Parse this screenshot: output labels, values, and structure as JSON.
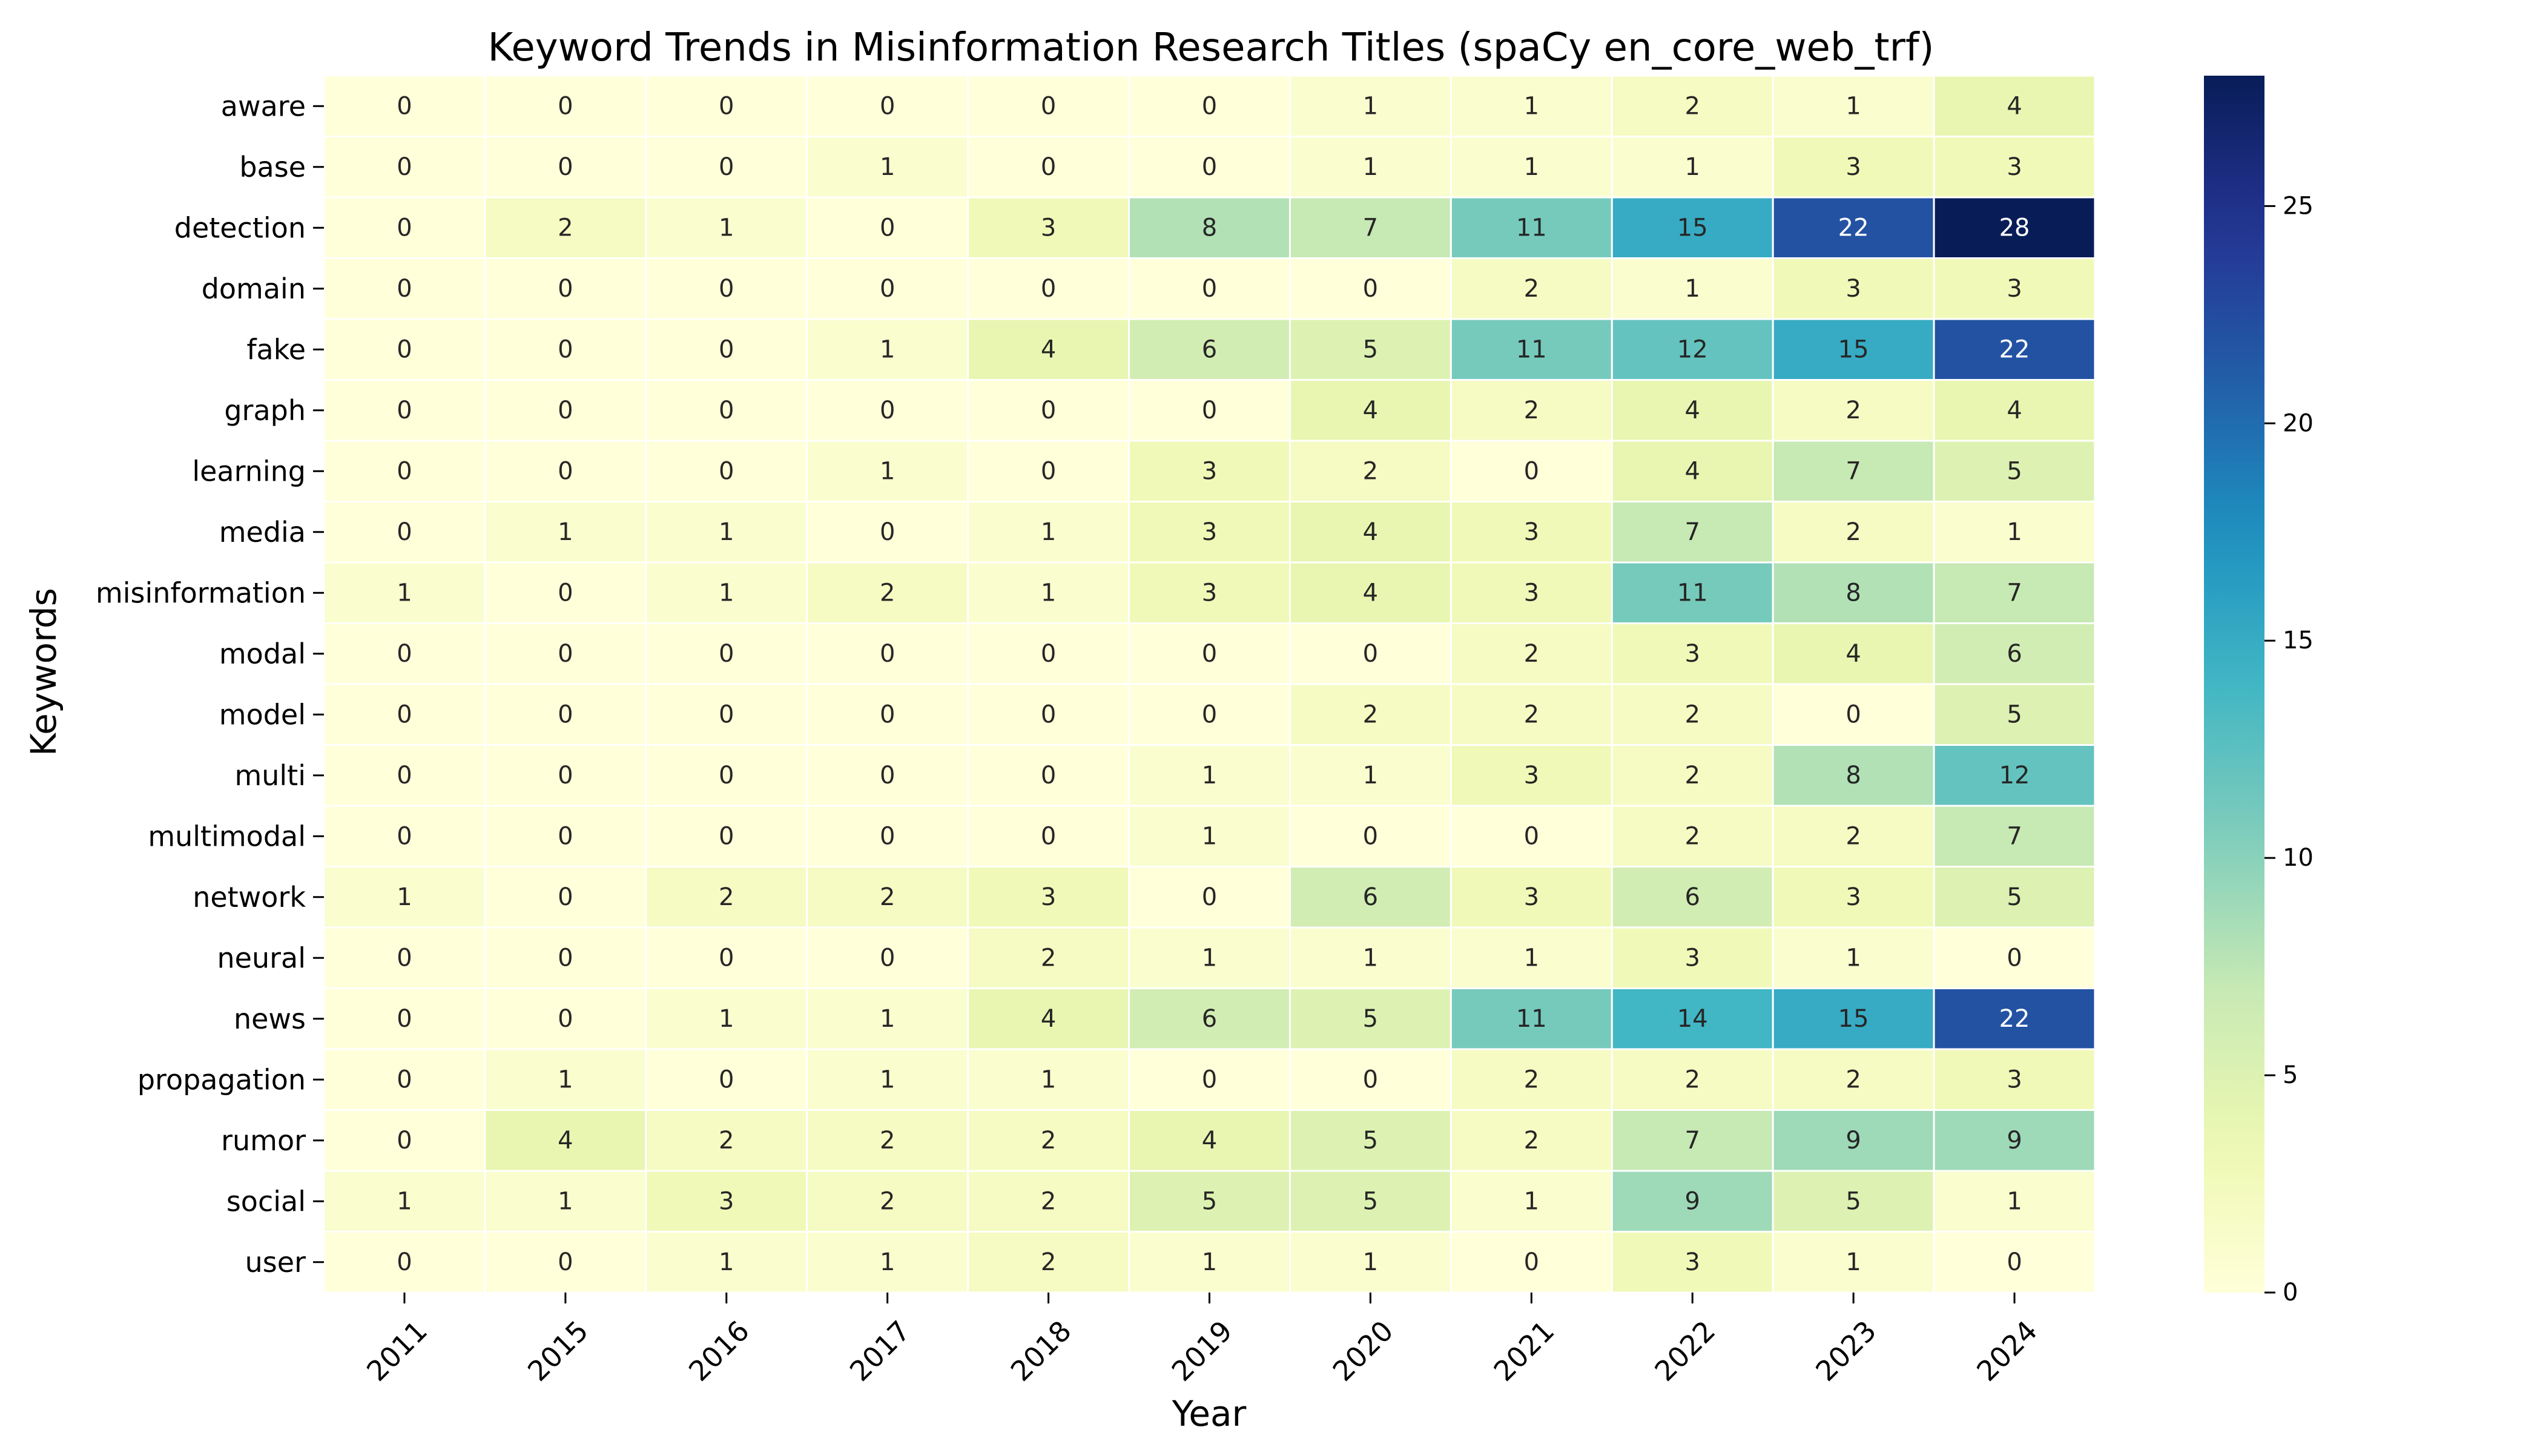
{
  "chart_data": {
    "type": "heatmap",
    "title": "Keyword Trends in Misinformation Research Titles (spaCy en_core_web_trf)",
    "xlabel": "Year",
    "ylabel": "Keywords",
    "x": [
      "2011",
      "2015",
      "2016",
      "2017",
      "2018",
      "2019",
      "2020",
      "2021",
      "2022",
      "2023",
      "2024"
    ],
    "y": [
      "aware",
      "base",
      "detection",
      "domain",
      "fake",
      "graph",
      "learning",
      "media",
      "misinformation",
      "modal",
      "model",
      "multi",
      "multimodal",
      "network",
      "neural",
      "news",
      "propagation",
      "rumor",
      "social",
      "user"
    ],
    "values": [
      [
        0,
        0,
        0,
        0,
        0,
        0,
        1,
        1,
        2,
        1,
        4
      ],
      [
        0,
        0,
        0,
        1,
        0,
        0,
        1,
        1,
        1,
        3,
        3
      ],
      [
        0,
        2,
        1,
        0,
        3,
        8,
        7,
        11,
        15,
        22,
        28
      ],
      [
        0,
        0,
        0,
        0,
        0,
        0,
        0,
        2,
        1,
        3,
        3
      ],
      [
        0,
        0,
        0,
        1,
        4,
        6,
        5,
        11,
        12,
        15,
        22
      ],
      [
        0,
        0,
        0,
        0,
        0,
        0,
        4,
        2,
        4,
        2,
        4
      ],
      [
        0,
        0,
        0,
        1,
        0,
        3,
        2,
        0,
        4,
        7,
        5
      ],
      [
        0,
        1,
        1,
        0,
        1,
        3,
        4,
        3,
        7,
        2,
        1
      ],
      [
        1,
        0,
        1,
        2,
        1,
        3,
        4,
        3,
        11,
        8,
        7
      ],
      [
        0,
        0,
        0,
        0,
        0,
        0,
        0,
        2,
        3,
        4,
        6
      ],
      [
        0,
        0,
        0,
        0,
        0,
        0,
        2,
        2,
        2,
        0,
        5
      ],
      [
        0,
        0,
        0,
        0,
        0,
        1,
        1,
        3,
        2,
        8,
        12
      ],
      [
        0,
        0,
        0,
        0,
        0,
        1,
        0,
        0,
        2,
        2,
        7
      ],
      [
        1,
        0,
        2,
        2,
        3,
        0,
        6,
        3,
        6,
        3,
        5
      ],
      [
        0,
        0,
        0,
        0,
        2,
        1,
        1,
        1,
        3,
        1,
        0
      ],
      [
        0,
        0,
        1,
        1,
        4,
        6,
        5,
        11,
        14,
        15,
        22
      ],
      [
        0,
        1,
        0,
        1,
        1,
        0,
        0,
        2,
        2,
        2,
        3
      ],
      [
        0,
        4,
        2,
        2,
        2,
        4,
        5,
        2,
        7,
        9,
        9
      ],
      [
        1,
        1,
        3,
        2,
        2,
        5,
        5,
        1,
        9,
        5,
        1
      ],
      [
        0,
        0,
        1,
        1,
        2,
        1,
        1,
        0,
        3,
        1,
        0
      ]
    ],
    "vmin": 0,
    "vmax": 28,
    "colormap": "YlGnBu",
    "colorbar_ticks": [
      0,
      5,
      10,
      15,
      20,
      25
    ],
    "annotated": true,
    "grid": false,
    "legend": "colorbar-right"
  }
}
